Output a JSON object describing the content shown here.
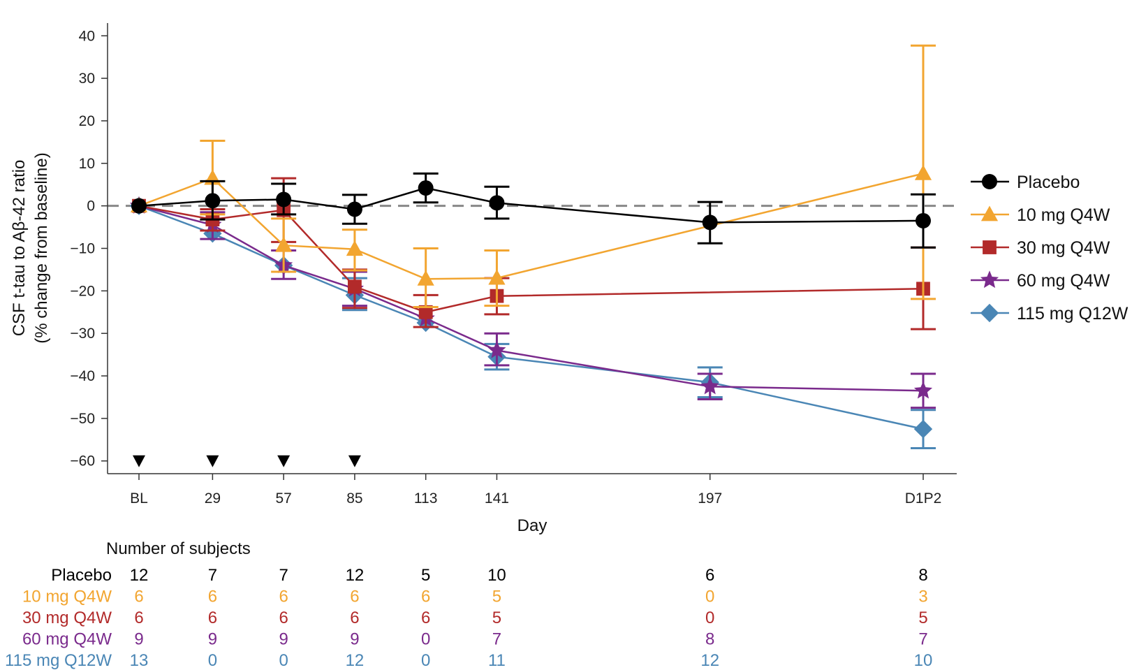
{
  "chart_data": {
    "type": "line",
    "title": "",
    "xlabel": "Day",
    "ylabel_line1": "CSF t-tau to Aβ-42 ratio",
    "ylabel_line2": "(% change from baseline)",
    "categories": [
      "BL",
      "29",
      "57",
      "85",
      "113",
      "141",
      "197",
      "D1P2"
    ],
    "category_positions": [
      0,
      29,
      57,
      85,
      113,
      141,
      225,
      309
    ],
    "ylim": [
      -63,
      43
    ],
    "yticks": [
      40,
      30,
      20,
      10,
      0,
      -10,
      -20,
      -30,
      -40,
      -50,
      -60
    ],
    "ytick_labels": [
      "40",
      "30",
      "20",
      "10",
      "0",
      "−10",
      "−20",
      "−30",
      "−40",
      "−50",
      "−60"
    ],
    "reference_line": 0,
    "dosing_markers": [
      0,
      29,
      57,
      85
    ],
    "legend_position": "right",
    "series": [
      {
        "name": "Placebo",
        "color": "#000000",
        "marker": "circle",
        "values": [
          0,
          1.2,
          1.5,
          -0.8,
          4.2,
          0.7,
          -3.9,
          -3.5
        ],
        "err_upper": [
          0,
          5.8,
          5.2,
          2.6,
          7.6,
          4.5,
          0.9,
          2.7
        ],
        "err_lower": [
          0,
          -3.2,
          -2.0,
          -4.2,
          0.8,
          -3.0,
          -8.8,
          -9.8
        ]
      },
      {
        "name": "10 mg Q4W",
        "color": "#F2A530",
        "marker": "triangle",
        "values": [
          0,
          6.5,
          -9.3,
          -10.2,
          -17.2,
          -17.0,
          null,
          7.6
        ],
        "err_upper": [
          0,
          15.3,
          -3.0,
          -5.6,
          -10.0,
          -10.5,
          null,
          37.7
        ],
        "err_lower": [
          0,
          -2.0,
          -15.5,
          -15.2,
          -23.8,
          -23.5,
          null,
          -21.9
        ]
      },
      {
        "name": "30 mg Q4W",
        "color": "#B22A2A",
        "marker": "square",
        "values": [
          0,
          -3.2,
          -1.0,
          -19.0,
          -25.0,
          -21.2,
          null,
          -19.5
        ],
        "err_upper": [
          0,
          -0.8,
          6.5,
          -15.0,
          -21.0,
          -17.0,
          null,
          -9.8
        ],
        "err_lower": [
          0,
          -5.8,
          -8.5,
          -24.0,
          -28.5,
          -25.5,
          null,
          -29.0
        ]
      },
      {
        "name": "60 mg Q4W",
        "color": "#7A2A8C",
        "marker": "star",
        "values": [
          0,
          -4.5,
          -14.0,
          -19.5,
          -26.5,
          -34.0,
          -42.5,
          -43.5
        ],
        "err_upper": [
          0,
          -1.5,
          -10.5,
          -15.5,
          null,
          -30.0,
          -39.5,
          -39.5
        ],
        "err_lower": [
          0,
          -7.8,
          -17.2,
          -23.5,
          null,
          -37.5,
          -45.5,
          -47.5
        ]
      },
      {
        "name": "115 mg Q12W",
        "color": "#4A86B5",
        "marker": "diamond",
        "values": [
          0,
          -6.5,
          -14.0,
          -21.0,
          -27.5,
          -35.5,
          -41.5,
          -52.5
        ],
        "err_upper": [
          0,
          null,
          null,
          -17.0,
          null,
          -32.5,
          -38.0,
          -48.0
        ],
        "err_lower": [
          0,
          null,
          null,
          -24.5,
          null,
          -38.5,
          -45.0,
          -57.0
        ]
      }
    ]
  },
  "subjects_table": {
    "title": "Number of subjects",
    "rows": [
      {
        "label": "Placebo",
        "color": "#000000",
        "counts": [
          "12",
          "7",
          "7",
          "12",
          "5",
          "10",
          "6",
          "8"
        ]
      },
      {
        "label": "10 mg Q4W",
        "color": "#F2A530",
        "counts": [
          "6",
          "6",
          "6",
          "6",
          "6",
          "5",
          "0",
          "3"
        ]
      },
      {
        "label": "30 mg Q4W",
        "color": "#B22A2A",
        "counts": [
          "6",
          "6",
          "6",
          "6",
          "6",
          "5",
          "0",
          "5"
        ]
      },
      {
        "label": "60 mg Q4W",
        "color": "#7A2A8C",
        "counts": [
          "9",
          "9",
          "9",
          "9",
          "0",
          "7",
          "8",
          "7"
        ]
      },
      {
        "label": "115 mg Q12W",
        "color": "#4A86B5",
        "counts": [
          "13",
          "0",
          "0",
          "12",
          "0",
          "11",
          "12",
          "10"
        ]
      }
    ]
  }
}
